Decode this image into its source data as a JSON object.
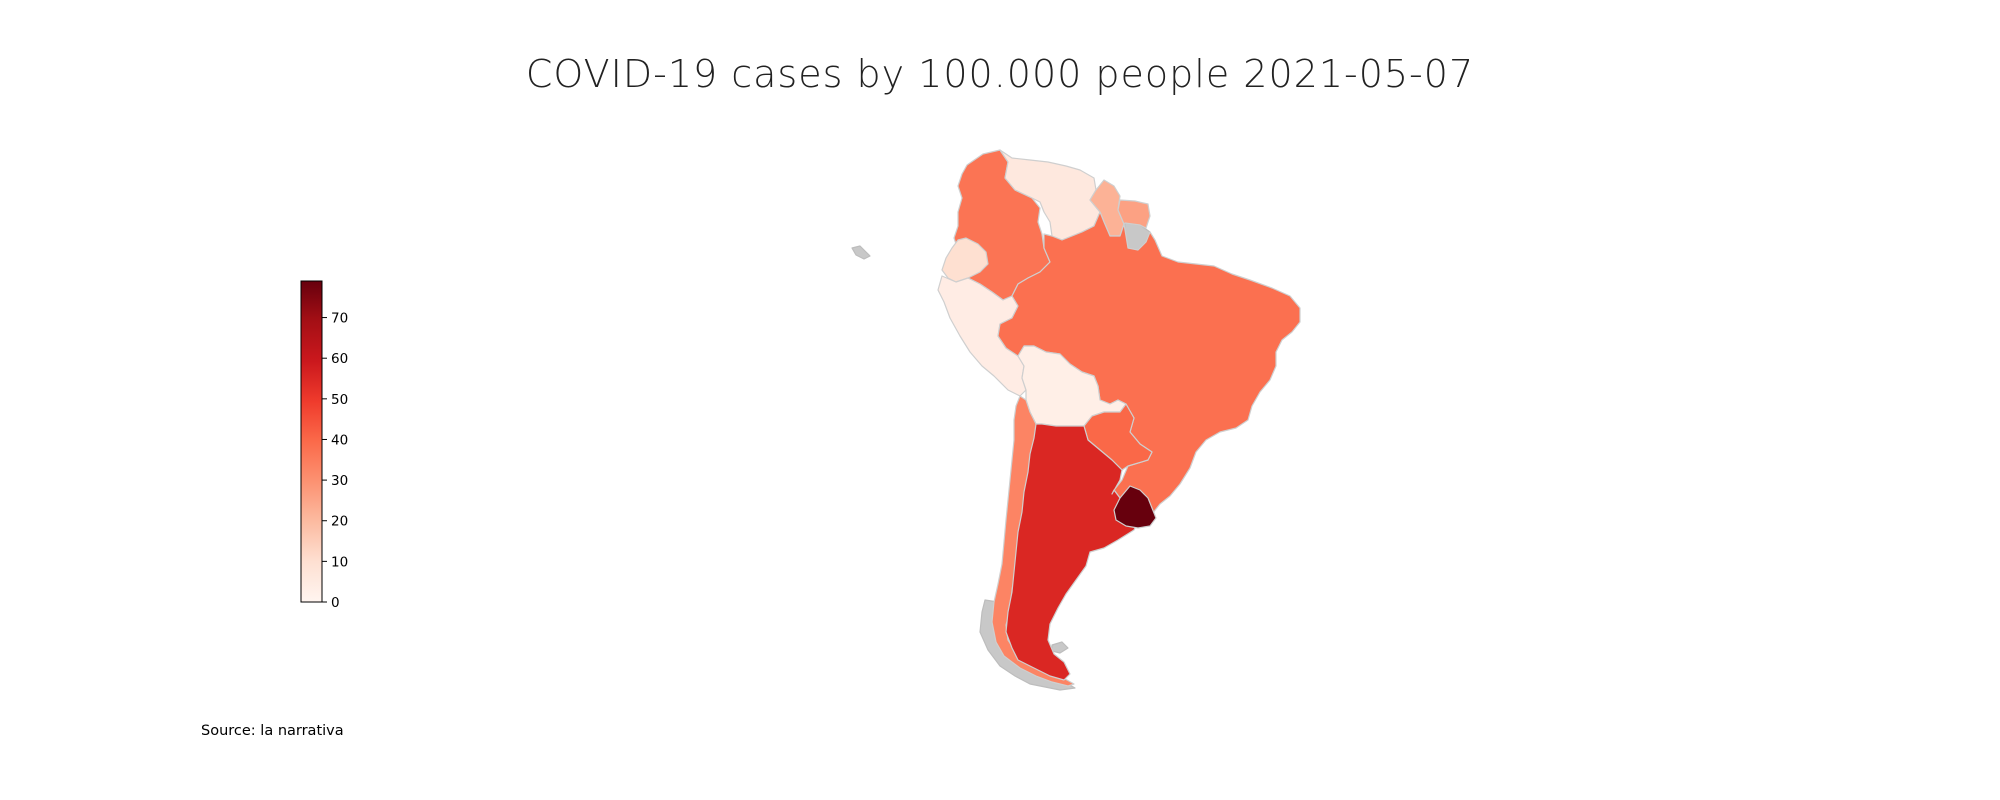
{
  "title": "COVID-19 cases by 100.000 people 2021-05-07",
  "source": "Source: la narrativa",
  "colorbar": {
    "min": 0,
    "max": 79,
    "ticks": [
      "0",
      "10",
      "20",
      "30",
      "40",
      "50",
      "60",
      "70"
    ],
    "colormap": [
      "#fff5f0",
      "#fee0d2",
      "#fcbba1",
      "#fc9272",
      "#fb6a4a",
      "#ef3b2c",
      "#cb181d",
      "#a50f15",
      "#67000d"
    ]
  },
  "colors": {
    "no_data": "#c8c8c8",
    "border": "#cfcfcf"
  },
  "chart_data": {
    "type": "choropleth",
    "region": "South America",
    "metric": "COVID-19 cases by 100.000 people",
    "date": "2021-05-07",
    "values": [
      {
        "country": "Colombia",
        "value": 37
      },
      {
        "country": "Venezuela",
        "value": 6
      },
      {
        "country": "Guyana",
        "value": 22
      },
      {
        "country": "Suriname",
        "value": 26
      },
      {
        "country": "Ecuador",
        "value": 10
      },
      {
        "country": "Peru",
        "value": 4
      },
      {
        "country": "Brazil",
        "value": 38
      },
      {
        "country": "Bolivia",
        "value": 3
      },
      {
        "country": "Paraguay",
        "value": 40
      },
      {
        "country": "Chile",
        "value": 33
      },
      {
        "country": "Argentina",
        "value": 55
      },
      {
        "country": "Uruguay",
        "value": 79
      }
    ]
  }
}
